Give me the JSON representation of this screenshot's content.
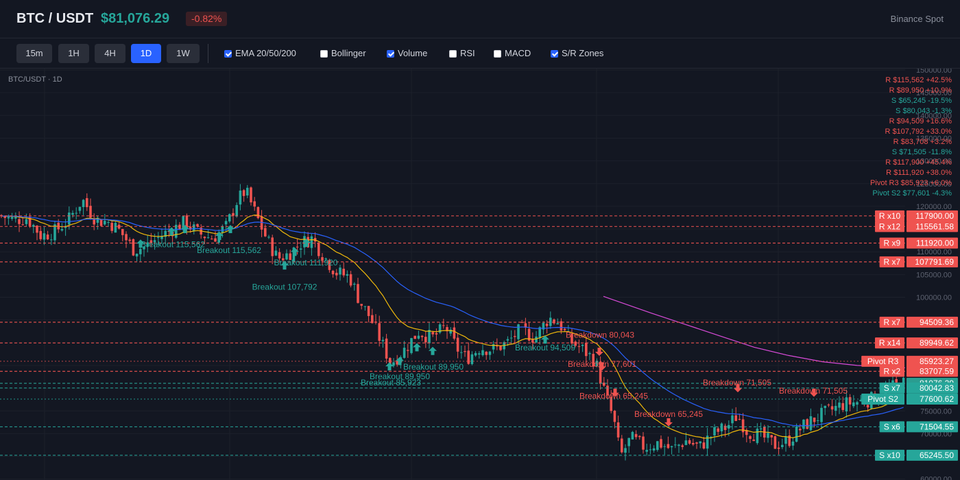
{
  "header": {
    "symbol": "BTC / USDT",
    "price": "$81,076.29",
    "change": "-0.82%",
    "exchange": "Binance Spot"
  },
  "toolbar": {
    "timeframes": [
      {
        "label": "15m",
        "active": false
      },
      {
        "label": "1H",
        "active": false
      },
      {
        "label": "4H",
        "active": false
      },
      {
        "label": "1D",
        "active": true
      },
      {
        "label": "1W",
        "active": false
      }
    ],
    "toggles": [
      {
        "label": "EMA 20/50/200",
        "checked": true
      },
      {
        "label": "Bollinger",
        "checked": false
      },
      {
        "label": "Volume",
        "checked": true
      },
      {
        "label": "RSI",
        "checked": false
      },
      {
        "label": "MACD",
        "checked": false
      },
      {
        "label": "S/R Zones",
        "checked": true
      }
    ]
  },
  "colors": {
    "up": "#26a69a",
    "down": "#ef5350",
    "ema_fast": "#f0b90b",
    "ema_mid": "#2962ff",
    "ema_slow": "#d94bd9",
    "background": "#131722"
  },
  "chart_data": {
    "type": "candlestick",
    "title": "BTC/USDT · 1D",
    "ylim": [
      60000,
      150000
    ],
    "y_ticks": [
      150000,
      145000,
      140000,
      135000,
      130000,
      125000,
      120000,
      115000,
      110000,
      105000,
      100000,
      95000,
      90000,
      85000,
      80000,
      75000,
      70000,
      65000,
      60000
    ],
    "close_path": [
      {
        "t": 0,
        "p": 118000
      },
      {
        "t": 20,
        "p": 117000
      },
      {
        "t": 40,
        "p": 117500
      },
      {
        "t": 60,
        "p": 113500
      },
      {
        "t": 80,
        "p": 114500
      },
      {
        "t": 100,
        "p": 117000
      },
      {
        "t": 120,
        "p": 121500
      },
      {
        "t": 140,
        "p": 117000
      },
      {
        "t": 160,
        "p": 116500
      },
      {
        "t": 175,
        "p": 114500
      },
      {
        "t": 195,
        "p": 110500
      },
      {
        "t": 210,
        "p": 111000
      },
      {
        "t": 240,
        "p": 114000
      },
      {
        "t": 270,
        "p": 116500
      },
      {
        "t": 290,
        "p": 114000
      },
      {
        "t": 310,
        "p": 113000
      },
      {
        "t": 330,
        "p": 115500
      },
      {
        "t": 345,
        "p": 121000
      },
      {
        "t": 358,
        "p": 123500
      },
      {
        "t": 375,
        "p": 117500
      },
      {
        "t": 390,
        "p": 112500
      },
      {
        "t": 405,
        "p": 108500
      },
      {
        "t": 420,
        "p": 109500
      },
      {
        "t": 440,
        "p": 112000
      },
      {
        "t": 455,
        "p": 113000
      },
      {
        "t": 470,
        "p": 109500
      },
      {
        "t": 490,
        "p": 105500
      },
      {
        "t": 510,
        "p": 104500
      },
      {
        "t": 525,
        "p": 99000
      },
      {
        "t": 540,
        "p": 95500
      },
      {
        "t": 555,
        "p": 90500
      },
      {
        "t": 570,
        "p": 85500
      },
      {
        "t": 590,
        "p": 88500
      },
      {
        "t": 610,
        "p": 92500
      },
      {
        "t": 630,
        "p": 91000
      },
      {
        "t": 650,
        "p": 93500
      },
      {
        "t": 665,
        "p": 89000
      },
      {
        "t": 680,
        "p": 86500
      },
      {
        "t": 700,
        "p": 89000
      },
      {
        "t": 720,
        "p": 88500
      },
      {
        "t": 740,
        "p": 90000
      },
      {
        "t": 760,
        "p": 93000
      },
      {
        "t": 780,
        "p": 91000
      },
      {
        "t": 800,
        "p": 95500
      },
      {
        "t": 815,
        "p": 94500
      },
      {
        "t": 830,
        "p": 90500
      },
      {
        "t": 850,
        "p": 88500
      },
      {
        "t": 868,
        "p": 86000
      },
      {
        "t": 880,
        "p": 80000
      },
      {
        "t": 895,
        "p": 73000
      },
      {
        "t": 905,
        "p": 65000
      },
      {
        "t": 920,
        "p": 69000
      },
      {
        "t": 940,
        "p": 67000
      },
      {
        "t": 960,
        "p": 68000
      },
      {
        "t": 980,
        "p": 66500
      },
      {
        "t": 1000,
        "p": 68500
      },
      {
        "t": 1020,
        "p": 67000
      },
      {
        "t": 1040,
        "p": 70000
      },
      {
        "t": 1060,
        "p": 71500
      },
      {
        "t": 1075,
        "p": 74000
      },
      {
        "t": 1090,
        "p": 70500
      },
      {
        "t": 1110,
        "p": 69500
      },
      {
        "t": 1130,
        "p": 67500
      },
      {
        "t": 1150,
        "p": 68500
      },
      {
        "t": 1170,
        "p": 71500
      },
      {
        "t": 1190,
        "p": 73500
      },
      {
        "t": 1210,
        "p": 75000
      },
      {
        "t": 1230,
        "p": 76500
      },
      {
        "t": 1250,
        "p": 77000
      },
      {
        "t": 1270,
        "p": 77500
      },
      {
        "t": 1290,
        "p": 79000
      },
      {
        "t": 1305,
        "p": 80500
      },
      {
        "t": 1320,
        "p": 81076
      }
    ],
    "ema_slow": [
      {
        "t": 880,
        "p": 100200
      },
      {
        "t": 950,
        "p": 96500
      },
      {
        "t": 1000,
        "p": 94000
      },
      {
        "t": 1050,
        "p": 91500
      },
      {
        "t": 1100,
        "p": 89000
      },
      {
        "t": 1150,
        "p": 87200
      },
      {
        "t": 1200,
        "p": 85800
      },
      {
        "t": 1250,
        "p": 85000
      },
      {
        "t": 1320,
        "p": 84500
      }
    ],
    "levels": [
      {
        "label": "R x10",
        "value": "117900.00",
        "price": 117900,
        "kind": "res"
      },
      {
        "label": "R x12",
        "value": "115561.58",
        "price": 115561.58,
        "kind": "res"
      },
      {
        "label": "R x9",
        "value": "111920.00",
        "price": 111920,
        "kind": "res"
      },
      {
        "label": "R x7",
        "value": "107791.69",
        "price": 107791.69,
        "kind": "res"
      },
      {
        "label": "R x7",
        "value": "94509.36",
        "price": 94509.36,
        "kind": "res"
      },
      {
        "label": "R x14",
        "value": "89949.62",
        "price": 89949.62,
        "kind": "res"
      },
      {
        "label": "Pivot R3",
        "value": "85923.27",
        "price": 85923.27,
        "kind": "pivot-res"
      },
      {
        "label": "R x2",
        "value": "83707.59",
        "price": 83707.59,
        "kind": "res"
      },
      {
        "label": "",
        "value": "81076.29",
        "price": 81076.29,
        "kind": "current"
      },
      {
        "label": "S x7",
        "value": "80042.83",
        "price": 80042.83,
        "kind": "sup"
      },
      {
        "label": "Pivot S2",
        "value": "77600.62",
        "price": 77600.62,
        "kind": "pivot-sup"
      },
      {
        "label": "S x6",
        "value": "71504.55",
        "price": 71504.55,
        "kind": "sup"
      },
      {
        "label": "S x10",
        "value": "65245.50",
        "price": 65245.5,
        "kind": "sup"
      }
    ],
    "zone_list": [
      {
        "text": "R $115,562 +42.5%",
        "kind": "res"
      },
      {
        "text": "R $89,950 +10.9%",
        "kind": "res"
      },
      {
        "text": "S $65,245 -19.5%",
        "kind": "sup"
      },
      {
        "text": "S $80,043 -1.3%",
        "kind": "sup"
      },
      {
        "text": "R $94,509 +16.6%",
        "kind": "res"
      },
      {
        "text": "R $107,792 +33.0%",
        "kind": "res"
      },
      {
        "text": "R $83,708 +3.2%",
        "kind": "res"
      },
      {
        "text": "S $71,505 -11.8%",
        "kind": "sup"
      },
      {
        "text": "R $117,900 +45.4%",
        "kind": "res"
      },
      {
        "text": "R $111,920 +38.0%",
        "kind": "res"
      },
      {
        "text": "Pivot R3 $85,923 +6.0%",
        "kind": "res"
      },
      {
        "text": "Pivot S2 $77,601 -4.3%",
        "kind": "sup"
      }
    ],
    "signals": [
      {
        "t": 205,
        "p": 111800,
        "text": "Breakout 115,562",
        "dir": "up"
      },
      {
        "t": 250,
        "p": 114500,
        "text": "Breakout 115,562",
        "dir": "up"
      },
      {
        "t": 270,
        "p": 115000,
        "text": "Breakout 115,562",
        "dir": "up"
      },
      {
        "t": 320,
        "p": 113500,
        "text": "Breakout 115,562",
        "dir": "up"
      },
      {
        "t": 336,
        "p": 115000,
        "text": "Breakout 115,562",
        "dir": "up"
      },
      {
        "t": 415,
        "p": 107000,
        "text": "Breakout 107,792",
        "dir": "up"
      },
      {
        "t": 430,
        "p": 110000,
        "text": "Breakout 111,920",
        "dir": "up"
      },
      {
        "t": 447,
        "p": 112000,
        "text": "Breakout 111,920",
        "dir": "up"
      },
      {
        "t": 568,
        "p": 84800,
        "text": "Breakout 85,923",
        "dir": "up"
      },
      {
        "t": 583,
        "p": 86000,
        "text": "Breakout 89,950",
        "dir": "up"
      },
      {
        "t": 608,
        "p": 89000,
        "text": "Breakout 89,950",
        "dir": "up"
      },
      {
        "t": 631,
        "p": 88200,
        "text": "Breakout 89,950",
        "dir": "up"
      },
      {
        "t": 795,
        "p": 90700,
        "text": "Breakout 94,509",
        "dir": "up"
      },
      {
        "t": 874,
        "p": 88000,
        "text": "Breakdown 80,043",
        "dir": "down"
      },
      {
        "t": 878,
        "p": 84800,
        "text": "Breakdown 77,601",
        "dir": "down"
      },
      {
        "t": 897,
        "p": 79000,
        "text": "Breakdown 65,245",
        "dir": "down"
      },
      {
        "t": 975,
        "p": 72500,
        "text": "Breakdown 65,245",
        "dir": "down"
      },
      {
        "t": 1076,
        "p": 80000,
        "text": "Breakdown 71,505",
        "dir": "down"
      },
      {
        "t": 1187,
        "p": 79000,
        "text": "Breakdown 71,505",
        "dir": "down"
      }
    ],
    "signal_labels": [
      {
        "t": 252,
        "p": 111600,
        "text": "Breakout 115,562"
      },
      {
        "t": 334,
        "p": 110300,
        "text": "Breakout 115,562"
      },
      {
        "t": 446,
        "p": 107600,
        "text": "Breakout 111,920"
      },
      {
        "t": 415,
        "p": 102300,
        "text": "Breakout 107,792"
      },
      {
        "t": 632,
        "p": 84700,
        "text": "Breakout 89,950"
      },
      {
        "t": 583,
        "p": 82600,
        "text": "Breakout 89,950"
      },
      {
        "t": 570,
        "p": 81200,
        "text": "Breakout 85,923"
      },
      {
        "t": 795,
        "p": 88900,
        "text": "Breakout 94,509"
      },
      {
        "t": 875,
        "p": 91700,
        "text": "Breakdown 80,043"
      },
      {
        "t": 878,
        "p": 85300,
        "text": "Breakdown 77,601"
      },
      {
        "t": 895,
        "p": 78300,
        "text": "Breakdown 65,245"
      },
      {
        "t": 975,
        "p": 74300,
        "text": "Breakdown 65,245"
      },
      {
        "t": 1075,
        "p": 81200,
        "text": "Breakdown 71,505"
      },
      {
        "t": 1186,
        "p": 79400,
        "text": "Breakdown 71,505"
      }
    ]
  }
}
